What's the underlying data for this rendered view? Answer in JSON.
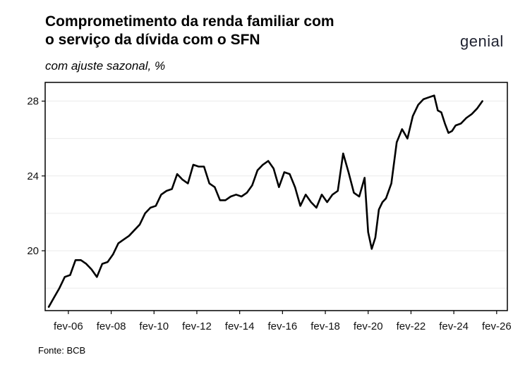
{
  "header": {
    "title_line1": "Comprometimento da renda familiar com",
    "title_line2": "o serviço da dívida com o SFN",
    "subtitle": "com ajuste sazonal, %",
    "logo_text": "genial"
  },
  "footer": {
    "source": "Fonte: BCB"
  },
  "chart_data": {
    "type": "line",
    "title": "Comprometimento da renda familiar com o serviço da dívida com o SFN",
    "subtitle": "com ajuste sazonal, %",
    "xlabel": "",
    "ylabel": "",
    "x_tick_labels": [
      "fev-06",
      "fev-08",
      "fev-10",
      "fev-12",
      "fev-14",
      "fev-16",
      "fev-18",
      "fev-20",
      "fev-22",
      "fev-24",
      "fev-26"
    ],
    "y_ticks": [
      20,
      24,
      28
    ],
    "ylim": [
      16.8,
      29.0
    ],
    "xlim": [
      "2005-01",
      "2026-08"
    ],
    "grid": "horizontal, light",
    "line_color": "#000000",
    "series": [
      {
        "x": [
          "2005-03",
          "2005-06",
          "2005-09",
          "2005-12",
          "2006-03",
          "2006-06",
          "2006-09",
          "2006-12",
          "2007-03",
          "2007-06",
          "2007-09",
          "2007-12",
          "2008-03",
          "2008-06",
          "2008-09",
          "2008-12",
          "2009-03",
          "2009-06",
          "2009-09",
          "2009-12",
          "2010-03",
          "2010-06",
          "2010-09",
          "2010-12",
          "2011-03",
          "2011-06",
          "2011-09",
          "2011-12",
          "2012-03",
          "2012-06",
          "2012-09",
          "2012-12",
          "2013-03",
          "2013-06",
          "2013-09",
          "2013-12",
          "2014-03",
          "2014-06",
          "2014-09",
          "2014-12",
          "2015-03",
          "2015-06",
          "2015-09",
          "2015-12",
          "2016-03",
          "2016-06",
          "2016-09",
          "2016-12",
          "2017-03",
          "2017-06",
          "2017-09",
          "2017-12",
          "2018-03",
          "2018-06",
          "2018-09",
          "2018-12",
          "2019-03",
          "2019-06",
          "2019-09",
          "2019-12",
          "2020-02",
          "2020-04",
          "2020-06",
          "2020-08",
          "2020-10",
          "2020-12",
          "2021-03",
          "2021-06",
          "2021-09",
          "2021-12",
          "2022-03",
          "2022-06",
          "2022-09",
          "2022-12",
          "2023-03",
          "2023-05",
          "2023-07",
          "2023-09",
          "2023-11",
          "2024-01",
          "2024-03",
          "2024-06",
          "2024-09",
          "2024-12",
          "2025-03",
          "2025-06"
        ],
        "values": [
          17.0,
          17.5,
          18.0,
          18.6,
          18.7,
          19.5,
          19.5,
          19.3,
          19.0,
          18.6,
          19.3,
          19.4,
          19.8,
          20.4,
          20.6,
          20.8,
          21.1,
          21.4,
          22.0,
          22.3,
          22.4,
          23.0,
          23.2,
          23.3,
          24.1,
          23.8,
          23.6,
          24.6,
          24.5,
          24.5,
          23.6,
          23.4,
          22.7,
          22.7,
          22.9,
          23.0,
          22.9,
          23.1,
          23.5,
          24.3,
          24.6,
          24.8,
          24.4,
          23.4,
          24.2,
          24.1,
          23.4,
          22.4,
          23.0,
          22.6,
          22.3,
          23.0,
          22.6,
          23.0,
          23.2,
          25.2,
          24.2,
          23.1,
          22.9,
          23.9,
          21.0,
          20.1,
          20.7,
          22.2,
          22.6,
          22.8,
          23.6,
          25.8,
          26.5,
          26.0,
          27.2,
          27.8,
          28.1,
          28.2,
          28.3,
          27.5,
          27.4,
          26.8,
          26.3,
          26.4,
          26.7,
          26.8,
          27.1,
          27.3,
          27.6,
          28.0
        ]
      }
    ]
  }
}
